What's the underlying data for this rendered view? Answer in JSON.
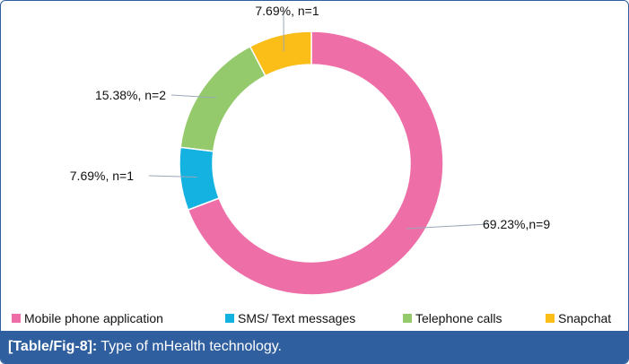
{
  "chart_data": {
    "type": "pie",
    "variant": "donut",
    "categories": [
      "Mobile phone application",
      "SMS/ Text messages",
      "Telephone calls",
      "Snapchat"
    ],
    "values": [
      9,
      1,
      2,
      1
    ],
    "percentages": [
      69.23,
      7.69,
      15.38,
      7.69
    ],
    "data_labels": [
      "69.23%,n=9",
      "7.69%, n=1",
      "15.38%, n=2",
      "7.69%, n=1"
    ],
    "colors": [
      "#ee6fa8",
      "#14b2e1",
      "#95ca6c",
      "#fbbd18"
    ],
    "legend_position": "bottom"
  },
  "caption": {
    "label": "[Table/Fig-8]:",
    "text": "Type of mHealth technology."
  }
}
